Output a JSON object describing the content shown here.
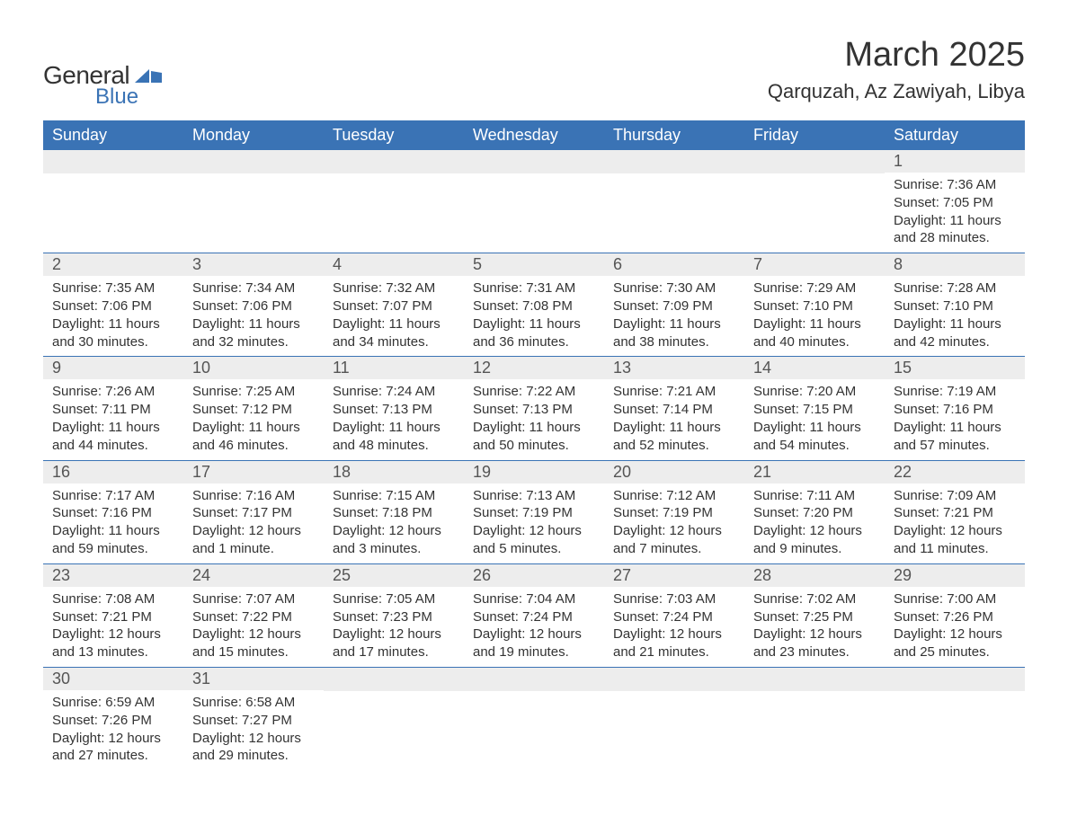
{
  "logo": {
    "general": "General",
    "blue": "Blue",
    "icon_color": "#3a73b5"
  },
  "title": "March 2025",
  "location": "Qarquzah, Az Zawiyah, Libya",
  "colors": {
    "header_bg": "#3a73b5",
    "header_text": "#ffffff",
    "daynum_bg": "#ededed",
    "daynum_text": "#555555",
    "body_text": "#333333",
    "row_divider": "#3a73b5",
    "page_bg": "#ffffff"
  },
  "typography": {
    "title_fontsize": 38,
    "location_fontsize": 22,
    "weekday_fontsize": 18,
    "daynum_fontsize": 18,
    "details_fontsize": 15
  },
  "weekdays": [
    "Sunday",
    "Monday",
    "Tuesday",
    "Wednesday",
    "Thursday",
    "Friday",
    "Saturday"
  ],
  "weeks": [
    [
      {
        "blank": true
      },
      {
        "blank": true
      },
      {
        "blank": true
      },
      {
        "blank": true
      },
      {
        "blank": true
      },
      {
        "blank": true
      },
      {
        "num": "1",
        "sunrise": "Sunrise: 7:36 AM",
        "sunset": "Sunset: 7:05 PM",
        "daylight": "Daylight: 11 hours and 28 minutes."
      }
    ],
    [
      {
        "num": "2",
        "sunrise": "Sunrise: 7:35 AM",
        "sunset": "Sunset: 7:06 PM",
        "daylight": "Daylight: 11 hours and 30 minutes."
      },
      {
        "num": "3",
        "sunrise": "Sunrise: 7:34 AM",
        "sunset": "Sunset: 7:06 PM",
        "daylight": "Daylight: 11 hours and 32 minutes."
      },
      {
        "num": "4",
        "sunrise": "Sunrise: 7:32 AM",
        "sunset": "Sunset: 7:07 PM",
        "daylight": "Daylight: 11 hours and 34 minutes."
      },
      {
        "num": "5",
        "sunrise": "Sunrise: 7:31 AM",
        "sunset": "Sunset: 7:08 PM",
        "daylight": "Daylight: 11 hours and 36 minutes."
      },
      {
        "num": "6",
        "sunrise": "Sunrise: 7:30 AM",
        "sunset": "Sunset: 7:09 PM",
        "daylight": "Daylight: 11 hours and 38 minutes."
      },
      {
        "num": "7",
        "sunrise": "Sunrise: 7:29 AM",
        "sunset": "Sunset: 7:10 PM",
        "daylight": "Daylight: 11 hours and 40 minutes."
      },
      {
        "num": "8",
        "sunrise": "Sunrise: 7:28 AM",
        "sunset": "Sunset: 7:10 PM",
        "daylight": "Daylight: 11 hours and 42 minutes."
      }
    ],
    [
      {
        "num": "9",
        "sunrise": "Sunrise: 7:26 AM",
        "sunset": "Sunset: 7:11 PM",
        "daylight": "Daylight: 11 hours and 44 minutes."
      },
      {
        "num": "10",
        "sunrise": "Sunrise: 7:25 AM",
        "sunset": "Sunset: 7:12 PM",
        "daylight": "Daylight: 11 hours and 46 minutes."
      },
      {
        "num": "11",
        "sunrise": "Sunrise: 7:24 AM",
        "sunset": "Sunset: 7:13 PM",
        "daylight": "Daylight: 11 hours and 48 minutes."
      },
      {
        "num": "12",
        "sunrise": "Sunrise: 7:22 AM",
        "sunset": "Sunset: 7:13 PM",
        "daylight": "Daylight: 11 hours and 50 minutes."
      },
      {
        "num": "13",
        "sunrise": "Sunrise: 7:21 AM",
        "sunset": "Sunset: 7:14 PM",
        "daylight": "Daylight: 11 hours and 52 minutes."
      },
      {
        "num": "14",
        "sunrise": "Sunrise: 7:20 AM",
        "sunset": "Sunset: 7:15 PM",
        "daylight": "Daylight: 11 hours and 54 minutes."
      },
      {
        "num": "15",
        "sunrise": "Sunrise: 7:19 AM",
        "sunset": "Sunset: 7:16 PM",
        "daylight": "Daylight: 11 hours and 57 minutes."
      }
    ],
    [
      {
        "num": "16",
        "sunrise": "Sunrise: 7:17 AM",
        "sunset": "Sunset: 7:16 PM",
        "daylight": "Daylight: 11 hours and 59 minutes."
      },
      {
        "num": "17",
        "sunrise": "Sunrise: 7:16 AM",
        "sunset": "Sunset: 7:17 PM",
        "daylight": "Daylight: 12 hours and 1 minute."
      },
      {
        "num": "18",
        "sunrise": "Sunrise: 7:15 AM",
        "sunset": "Sunset: 7:18 PM",
        "daylight": "Daylight: 12 hours and 3 minutes."
      },
      {
        "num": "19",
        "sunrise": "Sunrise: 7:13 AM",
        "sunset": "Sunset: 7:19 PM",
        "daylight": "Daylight: 12 hours and 5 minutes."
      },
      {
        "num": "20",
        "sunrise": "Sunrise: 7:12 AM",
        "sunset": "Sunset: 7:19 PM",
        "daylight": "Daylight: 12 hours and 7 minutes."
      },
      {
        "num": "21",
        "sunrise": "Sunrise: 7:11 AM",
        "sunset": "Sunset: 7:20 PM",
        "daylight": "Daylight: 12 hours and 9 minutes."
      },
      {
        "num": "22",
        "sunrise": "Sunrise: 7:09 AM",
        "sunset": "Sunset: 7:21 PM",
        "daylight": "Daylight: 12 hours and 11 minutes."
      }
    ],
    [
      {
        "num": "23",
        "sunrise": "Sunrise: 7:08 AM",
        "sunset": "Sunset: 7:21 PM",
        "daylight": "Daylight: 12 hours and 13 minutes."
      },
      {
        "num": "24",
        "sunrise": "Sunrise: 7:07 AM",
        "sunset": "Sunset: 7:22 PM",
        "daylight": "Daylight: 12 hours and 15 minutes."
      },
      {
        "num": "25",
        "sunrise": "Sunrise: 7:05 AM",
        "sunset": "Sunset: 7:23 PM",
        "daylight": "Daylight: 12 hours and 17 minutes."
      },
      {
        "num": "26",
        "sunrise": "Sunrise: 7:04 AM",
        "sunset": "Sunset: 7:24 PM",
        "daylight": "Daylight: 12 hours and 19 minutes."
      },
      {
        "num": "27",
        "sunrise": "Sunrise: 7:03 AM",
        "sunset": "Sunset: 7:24 PM",
        "daylight": "Daylight: 12 hours and 21 minutes."
      },
      {
        "num": "28",
        "sunrise": "Sunrise: 7:02 AM",
        "sunset": "Sunset: 7:25 PM",
        "daylight": "Daylight: 12 hours and 23 minutes."
      },
      {
        "num": "29",
        "sunrise": "Sunrise: 7:00 AM",
        "sunset": "Sunset: 7:26 PM",
        "daylight": "Daylight: 12 hours and 25 minutes."
      }
    ],
    [
      {
        "num": "30",
        "sunrise": "Sunrise: 6:59 AM",
        "sunset": "Sunset: 7:26 PM",
        "daylight": "Daylight: 12 hours and 27 minutes."
      },
      {
        "num": "31",
        "sunrise": "Sunrise: 6:58 AM",
        "sunset": "Sunset: 7:27 PM",
        "daylight": "Daylight: 12 hours and 29 minutes."
      },
      {
        "blank": true
      },
      {
        "blank": true
      },
      {
        "blank": true
      },
      {
        "blank": true
      },
      {
        "blank": true
      }
    ]
  ]
}
